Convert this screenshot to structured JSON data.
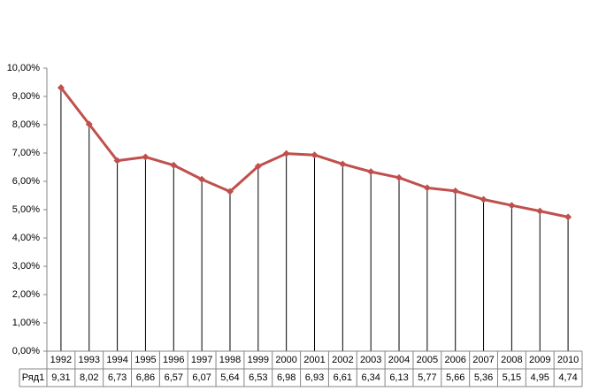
{
  "chart_data": {
    "type": "line",
    "categories": [
      "1992",
      "1993",
      "1994",
      "1995",
      "1996",
      "1997",
      "1998",
      "1999",
      "2000",
      "2001",
      "2002",
      "2003",
      "2004",
      "2005",
      "2006",
      "2007",
      "2008",
      "2009",
      "2010"
    ],
    "series": [
      {
        "name": "Ряд1",
        "color": "#c0504d",
        "values": [
          9.31,
          8.02,
          6.73,
          6.86,
          6.57,
          6.07,
          5.64,
          6.53,
          6.98,
          6.93,
          6.61,
          6.34,
          6.13,
          5.77,
          5.66,
          5.36,
          5.15,
          4.95,
          4.74
        ],
        "value_labels": [
          "9,31",
          "8,02",
          "6,73",
          "6,86",
          "6,57",
          "6,07",
          "5,64",
          "6,53",
          "6,98",
          "6,93",
          "6,61",
          "6,34",
          "6,13",
          "5,77",
          "5,66",
          "5,36",
          "5,15",
          "4,95",
          "4,74"
        ]
      }
    ],
    "ylim": [
      0,
      10
    ],
    "yticks": [
      {
        "value": 0,
        "label": "0,00%"
      },
      {
        "value": 1,
        "label": "1,00%"
      },
      {
        "value": 2,
        "label": "2,00%"
      },
      {
        "value": 3,
        "label": "3,00%"
      },
      {
        "value": 4,
        "label": "4,00%"
      },
      {
        "value": 5,
        "label": "5,00%"
      },
      {
        "value": 6,
        "label": "6,00%"
      },
      {
        "value": 7,
        "label": "7,00%"
      },
      {
        "value": 8,
        "label": "8,00%"
      },
      {
        "value": 9,
        "label": "9,00%"
      },
      {
        "value": 10,
        "label": "10,00%"
      }
    ],
    "drop_lines": true,
    "data_table": true
  }
}
